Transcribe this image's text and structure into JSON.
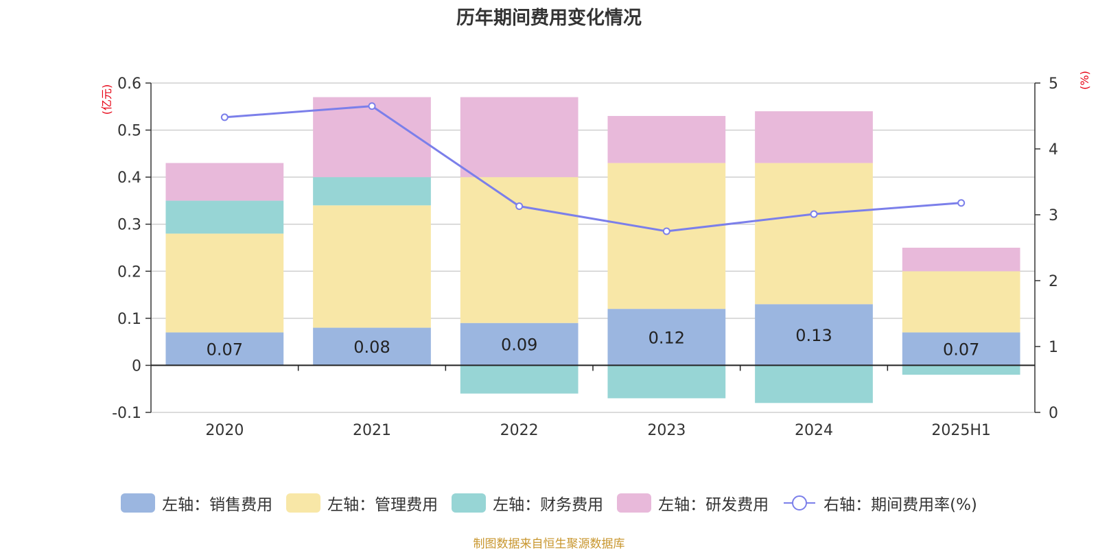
{
  "chart_data": {
    "type": "bar",
    "title": "历年期间费用变化情况",
    "categories": [
      "2020",
      "2021",
      "2022",
      "2023",
      "2024",
      "2025H1"
    ],
    "left_axis": {
      "unit": "(亿元)",
      "ylim": [
        -0.1,
        0.6
      ],
      "ticks": [
        "-0.1",
        "0",
        "0.1",
        "0.2",
        "0.3",
        "0.4",
        "0.5",
        "0.6"
      ]
    },
    "right_axis": {
      "unit": "(%)",
      "ylim": [
        0,
        5
      ],
      "ticks": [
        "0",
        "1",
        "2",
        "3",
        "4",
        "5"
      ]
    },
    "series": [
      {
        "name": "左轴：销售费用",
        "type": "bar",
        "color": "#9bb6e0",
        "values": [
          0.07,
          0.08,
          0.09,
          0.12,
          0.13,
          0.07
        ],
        "data_labels": [
          "0.07",
          "0.08",
          "0.09",
          "0.12",
          "0.13",
          "0.07"
        ]
      },
      {
        "name": "左轴：管理费用",
        "type": "bar",
        "color": "#f8e7a7",
        "values": [
          0.21,
          0.26,
          0.31,
          0.31,
          0.3,
          0.13
        ]
      },
      {
        "name": "左轴：财务费用",
        "type": "bar",
        "color": "#97d5d5",
        "values": [
          0.07,
          0.06,
          -0.06,
          -0.07,
          -0.08,
          -0.02
        ]
      },
      {
        "name": "左轴：研发费用",
        "type": "bar",
        "color": "#e8b9da",
        "values": [
          0.08,
          0.17,
          0.17,
          0.1,
          0.11,
          0.05
        ]
      },
      {
        "name": "右轴：期间费用率(%)",
        "type": "line",
        "color": "#7b7fea",
        "values": [
          4.48,
          4.65,
          3.13,
          2.75,
          3.01,
          3.18
        ]
      }
    ],
    "legend_position": "bottom",
    "grid": true
  },
  "source_note": "制图数据来自恒生聚源数据库"
}
